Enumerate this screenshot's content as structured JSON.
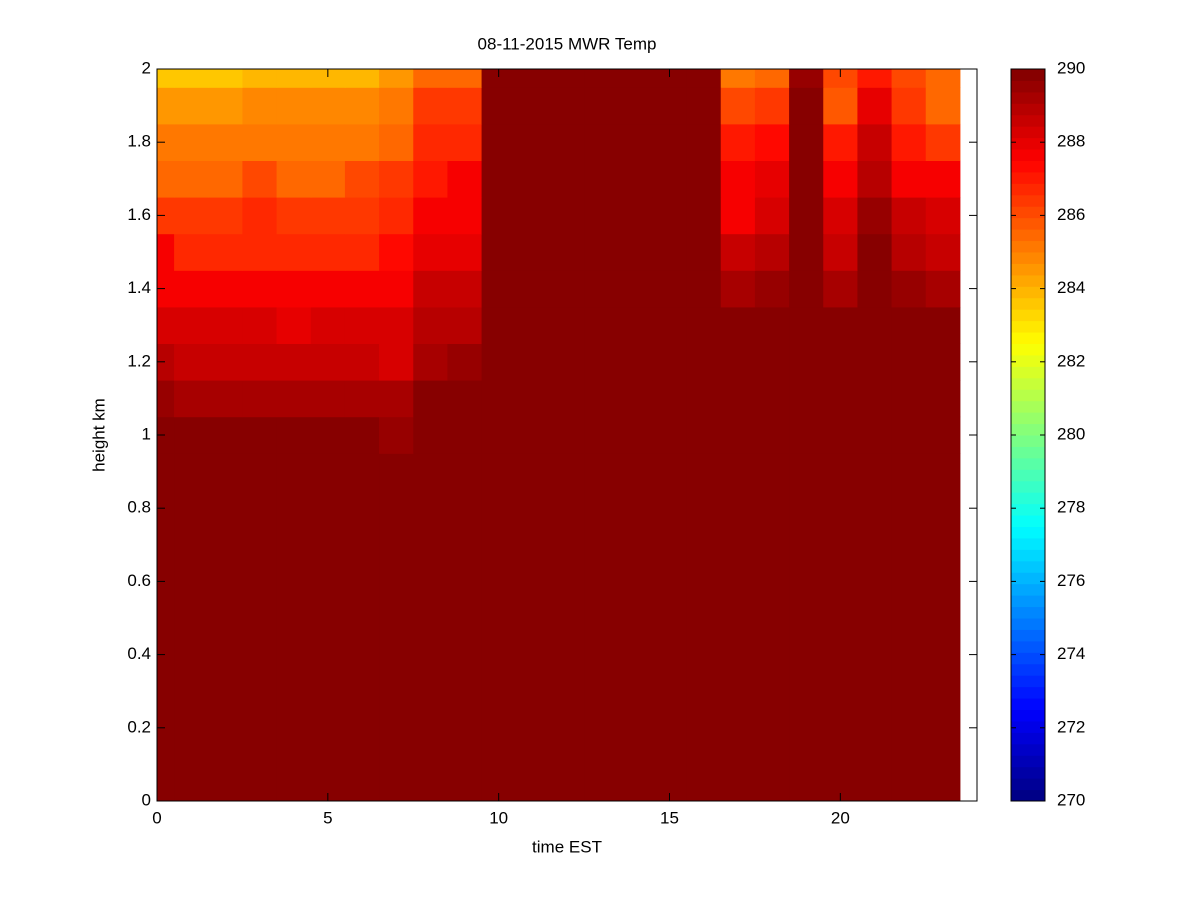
{
  "chart_data": {
    "type": "heatmap",
    "title": "08-11-2015 MWR Temp",
    "xlabel": "time EST",
    "ylabel": "height km",
    "colormap": "jet",
    "x_edges": [
      0,
      0.5,
      1.5,
      2.5,
      3.5,
      4.5,
      5.5,
      6.5,
      7.5,
      8.5,
      9.5,
      10.5,
      11.5,
      12.5,
      13.5,
      14.5,
      15.5,
      16.5,
      17.5,
      18.5,
      19.5,
      20.5,
      21.5,
      22.5,
      23.5
    ],
    "y_edges": [
      0,
      0.95,
      1.05,
      1.15,
      1.25,
      1.35,
      1.45,
      1.55,
      1.65,
      1.75,
      1.85,
      1.95,
      2
    ],
    "values": [
      [
        290,
        290,
        290,
        290,
        290,
        290,
        290,
        290,
        290,
        290,
        290,
        290,
        290,
        290,
        290,
        290,
        290,
        290,
        290,
        290,
        290,
        290,
        290,
        290
      ],
      [
        290,
        290,
        290,
        290,
        290,
        290,
        290,
        289.6,
        290,
        290,
        290,
        290,
        290,
        290,
        290,
        290,
        290,
        290,
        290,
        290,
        290,
        290,
        290,
        290
      ],
      [
        289.5,
        289.2,
        289.2,
        289.1,
        289.1,
        289.1,
        289.1,
        289.1,
        290,
        290,
        290,
        290,
        290,
        290,
        290,
        290,
        290,
        290,
        290,
        290,
        290,
        290,
        290,
        290
      ],
      [
        288.8,
        288.6,
        288.6,
        288.6,
        288.6,
        288.6,
        288.6,
        288.4,
        289.2,
        289.4,
        290,
        290,
        290,
        290,
        290,
        290,
        290,
        290,
        290,
        290,
        290,
        290,
        290,
        290
      ],
      [
        288.4,
        288.4,
        288.4,
        288.2,
        288.0,
        288.4,
        288.4,
        288.4,
        288.8,
        289,
        290,
        290,
        290,
        290,
        290,
        290,
        290,
        290,
        290,
        290,
        290,
        290,
        290,
        290
      ],
      [
        287.8,
        287.6,
        287.6,
        287.5,
        287.5,
        287.5,
        287.5,
        287.6,
        288.5,
        288.5,
        290,
        290,
        290,
        290,
        290,
        290,
        290,
        289.2,
        289.4,
        290,
        289.2,
        290,
        289.4,
        289.3
      ],
      [
        287.5,
        286.8,
        286.8,
        286.8,
        286.8,
        286.8,
        286.8,
        287.3,
        288,
        288,
        290,
        290,
        290,
        290,
        290,
        290,
        290,
        288.6,
        288.8,
        290,
        288.6,
        289.8,
        288.8,
        288.6
      ],
      [
        286.5,
        286.5,
        286.5,
        286.8,
        286.5,
        286.5,
        286.5,
        286.8,
        287.5,
        287.5,
        290,
        290,
        290,
        290,
        290,
        290,
        290,
        287.8,
        288.3,
        290,
        288.3,
        289.5,
        288.5,
        288.2
      ],
      [
        285.6,
        285.6,
        285.6,
        286,
        285.5,
        285.5,
        286,
        286.3,
        287,
        287.5,
        290,
        290,
        290,
        290,
        290,
        290,
        290,
        287.5,
        288,
        290,
        287.8,
        289,
        287.6,
        287.5
      ],
      [
        285,
        285,
        285,
        285.3,
        285.3,
        285.3,
        285.3,
        285.6,
        286.8,
        286.8,
        290,
        290,
        290,
        290,
        290,
        290,
        290,
        287,
        287.3,
        290,
        287,
        288.5,
        287,
        286.5
      ],
      [
        284.5,
        284.5,
        284.5,
        284.8,
        284.8,
        284.8,
        284.8,
        285.3,
        286.3,
        286.3,
        290,
        290,
        290,
        290,
        290,
        290,
        290,
        286,
        286.5,
        290,
        285.8,
        288,
        286.3,
        285.5
      ],
      [
        283.5,
        283.5,
        283.5,
        284,
        284,
        284,
        284,
        284.5,
        285.5,
        285.5,
        290,
        290,
        290,
        290,
        290,
        290,
        290,
        285,
        285.5,
        289.5,
        286,
        287,
        286,
        285.5
      ]
    ],
    "xlim": [
      0,
      24
    ],
    "xticks": [
      0,
      5,
      10,
      15,
      20
    ],
    "ylim": [
      0,
      2
    ],
    "yticks": [
      0,
      0.2,
      0.4,
      0.6,
      0.8,
      1,
      1.2,
      1.4,
      1.6,
      1.8,
      2
    ],
    "clim": [
      270,
      290
    ],
    "cticks": [
      270,
      272,
      274,
      276,
      278,
      280,
      282,
      284,
      286,
      288,
      290
    ]
  }
}
